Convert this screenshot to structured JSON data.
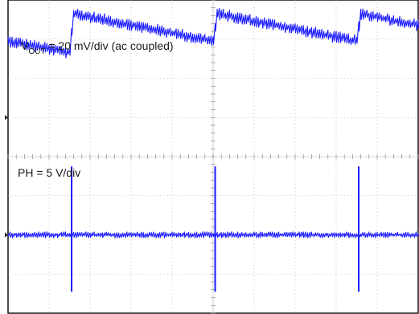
{
  "chart_data": {
    "type": "line",
    "title": "",
    "grid": true,
    "grid_divisions": {
      "x": 10,
      "y": 8
    },
    "time_axis": {
      "divisions": 10,
      "labels_printed": false
    },
    "traces": [
      {
        "name_main": "V",
        "name_sub": "OUT",
        "scale_text": " = 20 mV/div (ac coupled)",
        "units_per_div": "20 mV/div",
        "coupling": "ac",
        "color": "#1a1aff",
        "shape": "sawtooth",
        "baseline_div": 5.0,
        "points": [
          [
            0.0,
            1.95
          ],
          [
            1.5,
            1.65
          ],
          [
            1.6,
            2.65
          ],
          [
            5.0,
            1.95
          ],
          [
            5.1,
            2.65
          ],
          [
            8.5,
            1.95
          ],
          [
            8.6,
            2.65
          ],
          [
            10.0,
            2.35
          ]
        ]
      },
      {
        "name": "PH",
        "scale_text": "PH = 5 V/div",
        "units_per_div": "5 V/div",
        "color": "#1a1aff",
        "shape": "spikes",
        "baseline_div": 2.0,
        "flat_level_div": 0.0,
        "spikes": [
          {
            "t_div": 1.55,
            "high_div": 1.75,
            "low_div": -1.45
          },
          {
            "t_div": 5.05,
            "high_div": 1.75,
            "low_div": -1.45
          },
          {
            "t_div": 8.55,
            "high_div": 1.75,
            "low_div": -1.45
          }
        ]
      }
    ]
  }
}
